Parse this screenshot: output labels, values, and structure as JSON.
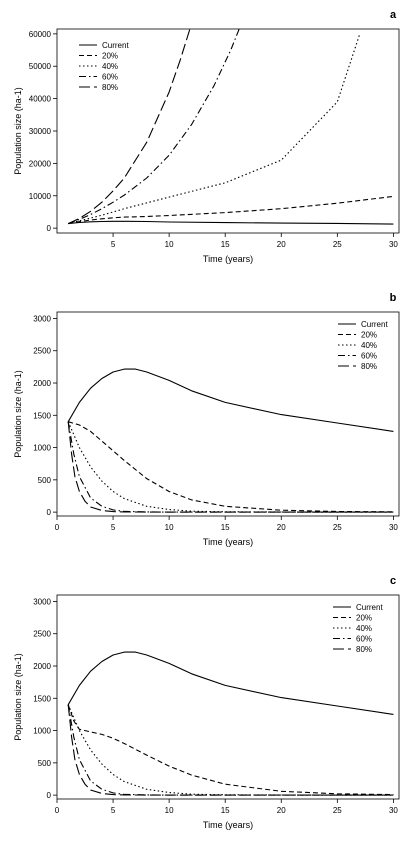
{
  "chart_data": [
    {
      "type": "line",
      "panel_label": "a",
      "xlabel": "Time (years)",
      "ylabel": "Population size (ha-1)",
      "xlim": [
        0,
        30.5
      ],
      "ylim": [
        -1500,
        61500
      ],
      "xticks": [
        5,
        10,
        15,
        20,
        25,
        30
      ],
      "yticks": [
        0,
        10000,
        20000,
        30000,
        40000,
        50000,
        60000
      ],
      "legend_position": "top-left",
      "grid": false,
      "series": [
        {
          "name": "Current",
          "dash": "solid",
          "points": [
            [
              1,
              1400
            ],
            [
              2,
              1750
            ],
            [
              3,
              1950
            ],
            [
              4,
              2050
            ],
            [
              5,
              2100
            ],
            [
              6,
              2100
            ],
            [
              8,
              2050
            ],
            [
              10,
              1900
            ],
            [
              15,
              1700
            ],
            [
              20,
              1550
            ],
            [
              25,
              1450
            ],
            [
              30,
              1250
            ]
          ]
        },
        {
          "name": "20%",
          "dash": "short",
          "points": [
            [
              1,
              1400
            ],
            [
              2,
              2000
            ],
            [
              3,
              2500
            ],
            [
              4,
              2900
            ],
            [
              5,
              3200
            ],
            [
              6,
              3400
            ],
            [
              8,
              3600
            ],
            [
              10,
              3900
            ],
            [
              15,
              4800
            ],
            [
              20,
              6000
            ],
            [
              25,
              7700
            ],
            [
              30,
              9800
            ]
          ]
        },
        {
          "name": "40%",
          "dash": "dotted",
          "points": [
            [
              1,
              1400
            ],
            [
              2,
              2300
            ],
            [
              3,
              3100
            ],
            [
              4,
              4000
            ],
            [
              5,
              5000
            ],
            [
              6,
              6000
            ],
            [
              8,
              7800
            ],
            [
              10,
              9600
            ],
            [
              15,
              14000
            ],
            [
              20,
              21000
            ],
            [
              25,
              39000
            ],
            [
              27,
              60000
            ]
          ]
        },
        {
          "name": "60%",
          "dash": "dashdot",
          "points": [
            [
              1,
              1400
            ],
            [
              2,
              2700
            ],
            [
              3,
              4200
            ],
            [
              4,
              6000
            ],
            [
              5,
              8000
            ],
            [
              6,
              10200
            ],
            [
              8,
              15500
            ],
            [
              10,
              22500
            ],
            [
              12,
              32000
            ],
            [
              14,
              44000
            ],
            [
              15.5,
              55000
            ],
            [
              16.3,
              62000
            ]
          ]
        },
        {
          "name": "80%",
          "dash": "long",
          "points": [
            [
              1,
              1400
            ],
            [
              2,
              3000
            ],
            [
              3,
              5200
            ],
            [
              4,
              8000
            ],
            [
              5,
              11500
            ],
            [
              6,
              15500
            ],
            [
              8,
              26500
            ],
            [
              10,
              42000
            ],
            [
              11,
              52000
            ],
            [
              11.9,
              62000
            ]
          ]
        }
      ]
    },
    {
      "type": "line",
      "panel_label": "b",
      "xlabel": "Time (years)",
      "ylabel": "Population size (ha-1)",
      "xlim": [
        0,
        30.5
      ],
      "ylim": [
        -60,
        3100
      ],
      "xticks": [
        0,
        5,
        10,
        15,
        20,
        25,
        30
      ],
      "yticks": [
        0,
        500,
        1000,
        1500,
        2000,
        2500,
        3000
      ],
      "legend_position": "top-right",
      "grid": false,
      "series": [
        {
          "name": "Current",
          "dash": "solid",
          "points": [
            [
              1,
              1400
            ],
            [
              2,
              1700
            ],
            [
              3,
              1920
            ],
            [
              4,
              2070
            ],
            [
              5,
              2170
            ],
            [
              6,
              2215
            ],
            [
              7,
              2215
            ],
            [
              8,
              2170
            ],
            [
              10,
              2040
            ],
            [
              12,
              1880
            ],
            [
              15,
              1700
            ],
            [
              20,
              1510
            ],
            [
              25,
              1380
            ],
            [
              30,
              1250
            ]
          ]
        },
        {
          "name": "20%",
          "dash": "short",
          "points": [
            [
              1,
              1400
            ],
            [
              2,
              1350
            ],
            [
              3,
              1250
            ],
            [
              4,
              1100
            ],
            [
              5,
              950
            ],
            [
              6,
              800
            ],
            [
              8,
              520
            ],
            [
              10,
              320
            ],
            [
              12,
              190
            ],
            [
              15,
              90
            ],
            [
              20,
              30
            ],
            [
              25,
              10
            ],
            [
              30,
              5
            ]
          ]
        },
        {
          "name": "40%",
          "dash": "dotted",
          "points": [
            [
              1,
              1400
            ],
            [
              2,
              1000
            ],
            [
              3,
              700
            ],
            [
              4,
              480
            ],
            [
              5,
              320
            ],
            [
              6,
              210
            ],
            [
              8,
              90
            ],
            [
              10,
              40
            ],
            [
              12,
              15
            ],
            [
              15,
              5
            ],
            [
              20,
              2
            ],
            [
              30,
              0
            ]
          ]
        },
        {
          "name": "60%",
          "dash": "dashdot",
          "points": [
            [
              1,
              1400
            ],
            [
              1.5,
              900
            ],
            [
              2,
              550
            ],
            [
              3,
              220
            ],
            [
              4,
              90
            ],
            [
              5,
              35
            ],
            [
              6,
              12
            ],
            [
              8,
              3
            ],
            [
              10,
              1
            ],
            [
              15,
              0
            ],
            [
              30,
              0
            ]
          ]
        },
        {
          "name": "80%",
          "dash": "long",
          "points": [
            [
              1,
              1400
            ],
            [
              1.3,
              900
            ],
            [
              1.6,
              550
            ],
            [
              2,
              320
            ],
            [
              2.5,
              170
            ],
            [
              3,
              80
            ],
            [
              4,
              25
            ],
            [
              5,
              8
            ],
            [
              6,
              3
            ],
            [
              8,
              0
            ],
            [
              30,
              0
            ]
          ]
        }
      ]
    },
    {
      "type": "line",
      "panel_label": "c",
      "xlabel": "Time (years)",
      "ylabel": "Population size (ha-1)",
      "xlim": [
        0,
        30.5
      ],
      "ylim": [
        -60,
        3100
      ],
      "xticks": [
        0,
        5,
        10,
        15,
        20,
        25,
        30
      ],
      "yticks": [
        0,
        500,
        1000,
        1500,
        2000,
        2500,
        3000
      ],
      "legend_position": "top-right",
      "grid": false,
      "series": [
        {
          "name": "Current",
          "dash": "solid",
          "points": [
            [
              1,
              1400
            ],
            [
              2,
              1700
            ],
            [
              3,
              1920
            ],
            [
              4,
              2070
            ],
            [
              5,
              2170
            ],
            [
              6,
              2215
            ],
            [
              7,
              2215
            ],
            [
              8,
              2170
            ],
            [
              10,
              2040
            ],
            [
              12,
              1880
            ],
            [
              15,
              1700
            ],
            [
              20,
              1510
            ],
            [
              25,
              1380
            ],
            [
              30,
              1250
            ]
          ]
        },
        {
          "name": "20%",
          "dash": "short",
          "points": [
            [
              1,
              1400
            ],
            [
              1.5,
              1150
            ],
            [
              2,
              1020
            ],
            [
              3,
              980
            ],
            [
              4,
              940
            ],
            [
              5,
              880
            ],
            [
              6,
              800
            ],
            [
              8,
              620
            ],
            [
              10,
              450
            ],
            [
              12,
              310
            ],
            [
              15,
              170
            ],
            [
              20,
              60
            ],
            [
              25,
              20
            ],
            [
              30,
              8
            ]
          ]
        },
        {
          "name": "40%",
          "dash": "dotted",
          "points": [
            [
              1,
              1400
            ],
            [
              2,
              1000
            ],
            [
              3,
              700
            ],
            [
              4,
              480
            ],
            [
              5,
              320
            ],
            [
              6,
              210
            ],
            [
              8,
              90
            ],
            [
              10,
              40
            ],
            [
              12,
              15
            ],
            [
              15,
              5
            ],
            [
              20,
              2
            ],
            [
              30,
              0
            ]
          ]
        },
        {
          "name": "60%",
          "dash": "dashdot",
          "points": [
            [
              1,
              1400
            ],
            [
              1.5,
              900
            ],
            [
              2,
              550
            ],
            [
              3,
              220
            ],
            [
              4,
              90
            ],
            [
              5,
              35
            ],
            [
              6,
              12
            ],
            [
              8,
              3
            ],
            [
              10,
              1
            ],
            [
              15,
              0
            ],
            [
              30,
              0
            ]
          ]
        },
        {
          "name": "80%",
          "dash": "long",
          "points": [
            [
              1,
              1400
            ],
            [
              1.3,
              900
            ],
            [
              1.6,
              550
            ],
            [
              2,
              320
            ],
            [
              2.5,
              170
            ],
            [
              3,
              80
            ],
            [
              4,
              25
            ],
            [
              5,
              8
            ],
            [
              6,
              3
            ],
            [
              8,
              0
            ],
            [
              30,
              0
            ]
          ]
        }
      ]
    }
  ]
}
